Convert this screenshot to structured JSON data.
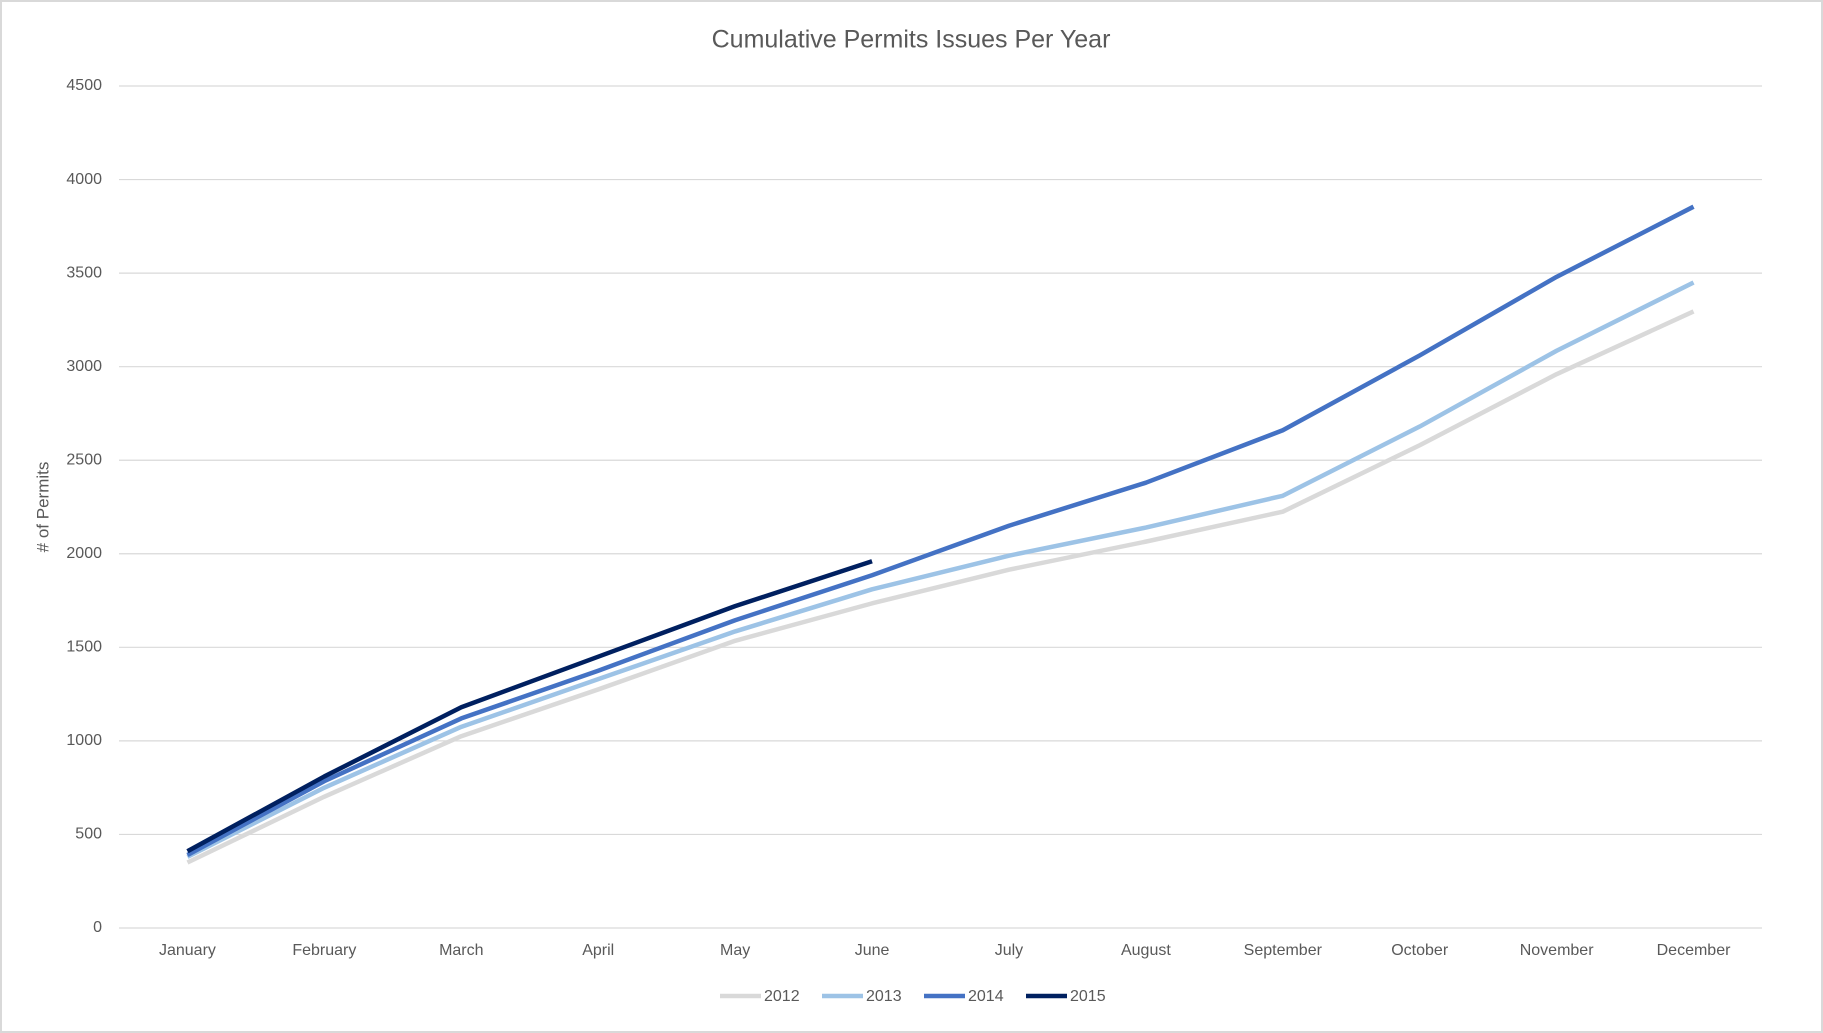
{
  "chart_data": {
    "type": "line",
    "title": "Cumulative Permits Issues Per Year",
    "y_label": "# of Permits",
    "categories": [
      "January",
      "February",
      "March",
      "April",
      "May",
      "June",
      "July",
      "August",
      "September",
      "October",
      "November",
      "December"
    ],
    "series": [
      {
        "name": "2012",
        "color": "#d9d9d9",
        "values": [
          350,
          702,
          1025,
          1275,
          1535,
          1735,
          1915,
          2065,
          2225,
          2580,
          2960,
          3295
        ]
      },
      {
        "name": "2013",
        "color": "#9dc3e6",
        "values": [
          380,
          750,
          1075,
          1330,
          1585,
          1810,
          1990,
          2140,
          2310,
          2680,
          3085,
          3450
        ]
      },
      {
        "name": "2014",
        "color": "#4472c4",
        "values": [
          390,
          785,
          1120,
          1375,
          1645,
          1885,
          2150,
          2380,
          2660,
          3060,
          3480,
          3855
        ]
      },
      {
        "name": "2015",
        "color": "#002060",
        "values": [
          410,
          810,
          1180,
          1450,
          1720,
          1960,
          null,
          null,
          null,
          null,
          null,
          null
        ]
      }
    ],
    "ylim": [
      0,
      4500
    ],
    "yticks": [
      0,
      500,
      1000,
      1500,
      2000,
      2500,
      3000,
      3500,
      4000,
      4500
    ],
    "grid": true
  }
}
